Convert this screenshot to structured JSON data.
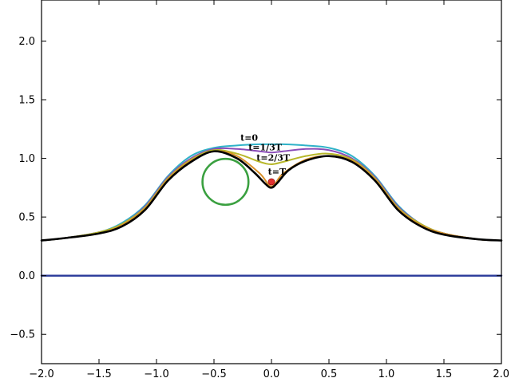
{
  "chart_data": {
    "type": "line",
    "title": "",
    "xlabel": "",
    "ylabel": "",
    "xlim": [
      -2.0,
      2.0
    ],
    "ylim": [
      -0.75,
      2.35
    ],
    "grid": false,
    "x_ticks": [
      -2.0,
      -1.5,
      -1.0,
      -0.5,
      0.0,
      0.5,
      1.0,
      1.5,
      2.0
    ],
    "x_tick_labels": [
      "−2.0",
      "−1.5",
      "−1.0",
      "−0.5",
      "0.0",
      "0.5",
      "1.0",
      "1.5",
      "2.0"
    ],
    "y_ticks": [
      -0.5,
      0.0,
      0.5,
      1.0,
      1.5,
      2.0
    ],
    "y_tick_labels": [
      "−0.5",
      "0.0",
      "0.5",
      "1.0",
      "1.5",
      "2.0"
    ],
    "series": [
      {
        "color": "#2fb2c8",
        "x": [
          -2.0,
          -1.8,
          -1.5,
          -1.3,
          -1.1,
          -0.9,
          -0.7,
          -0.5,
          -0.3,
          -0.1,
          0.0,
          0.1,
          0.3,
          0.5,
          0.7,
          0.9,
          1.1,
          1.3,
          1.5,
          1.8,
          2.0
        ],
        "y": [
          0.3,
          0.32,
          0.37,
          0.45,
          0.6,
          0.85,
          1.02,
          1.09,
          1.11,
          1.12,
          1.12,
          1.12,
          1.11,
          1.09,
          1.02,
          0.85,
          0.6,
          0.44,
          0.36,
          0.31,
          0.3
        ]
      },
      {
        "color": "#8a4cb8",
        "x": [
          -2.0,
          -1.8,
          -1.5,
          -1.3,
          -1.1,
          -0.9,
          -0.7,
          -0.5,
          -0.3,
          -0.1,
          0.0,
          0.1,
          0.3,
          0.5,
          0.7,
          0.9,
          1.1,
          1.3,
          1.5,
          1.8,
          2.0
        ],
        "y": [
          0.3,
          0.32,
          0.37,
          0.44,
          0.59,
          0.84,
          1.0,
          1.08,
          1.08,
          1.06,
          1.05,
          1.06,
          1.08,
          1.07,
          1.0,
          0.84,
          0.59,
          0.44,
          0.36,
          0.31,
          0.3
        ]
      },
      {
        "color": "#b8b82a",
        "x": [
          -2.0,
          -1.8,
          -1.5,
          -1.3,
          -1.1,
          -0.9,
          -0.7,
          -0.5,
          -0.3,
          -0.1,
          0.0,
          0.1,
          0.3,
          0.5,
          0.7,
          0.9,
          1.1,
          1.3,
          1.5,
          1.8,
          2.0
        ],
        "y": [
          0.3,
          0.32,
          0.37,
          0.44,
          0.58,
          0.83,
          0.99,
          1.07,
          1.04,
          0.97,
          0.95,
          0.97,
          1.02,
          1.04,
          0.99,
          0.83,
          0.58,
          0.44,
          0.36,
          0.31,
          0.3
        ]
      },
      {
        "color": "#d8902a",
        "x": [
          -2.0,
          -1.8,
          -1.5,
          -1.3,
          -1.1,
          -0.9,
          -0.7,
          -0.5,
          -0.3,
          -0.1,
          0.0,
          0.1,
          0.3,
          0.5,
          0.7,
          0.9,
          1.1,
          1.3,
          1.5,
          1.8,
          2.0
        ],
        "y": [
          0.3,
          0.32,
          0.36,
          0.43,
          0.57,
          0.82,
          0.98,
          1.06,
          1.02,
          0.87,
          0.76,
          0.87,
          0.99,
          1.02,
          0.98,
          0.82,
          0.57,
          0.43,
          0.36,
          0.31,
          0.3
        ]
      },
      {
        "color": "#000000",
        "x": [
          -2.0,
          -1.8,
          -1.5,
          -1.3,
          -1.1,
          -0.9,
          -0.7,
          -0.5,
          -0.3,
          -0.15,
          -0.05,
          0.0,
          0.05,
          0.15,
          0.3,
          0.5,
          0.7,
          0.9,
          1.1,
          1.3,
          1.5,
          1.8,
          2.0
        ],
        "y": [
          0.3,
          0.32,
          0.36,
          0.42,
          0.56,
          0.81,
          0.97,
          1.06,
          1.0,
          0.88,
          0.78,
          0.75,
          0.79,
          0.9,
          0.98,
          1.02,
          0.97,
          0.81,
          0.56,
          0.42,
          0.35,
          0.31,
          0.3
        ]
      },
      {
        "color": "#2a3a9a",
        "x": [
          -2.0,
          2.0
        ],
        "y": [
          0.0,
          0.0
        ]
      }
    ],
    "circle": {
      "cx": -0.4,
      "cy": 0.8,
      "r": 0.2,
      "color": "#3aa040"
    },
    "point": {
      "x": 0.0,
      "y": 0.8,
      "color": "#e03030"
    },
    "annotations": [
      {
        "text": "t=0",
        "x": -0.27,
        "y": 1.15
      },
      {
        "text": "t=1/3T",
        "x": -0.2,
        "y": 1.07
      },
      {
        "text": "t=2/3T",
        "x": -0.13,
        "y": 0.98
      },
      {
        "text": "t=T",
        "x": -0.03,
        "y": 0.86
      }
    ]
  }
}
